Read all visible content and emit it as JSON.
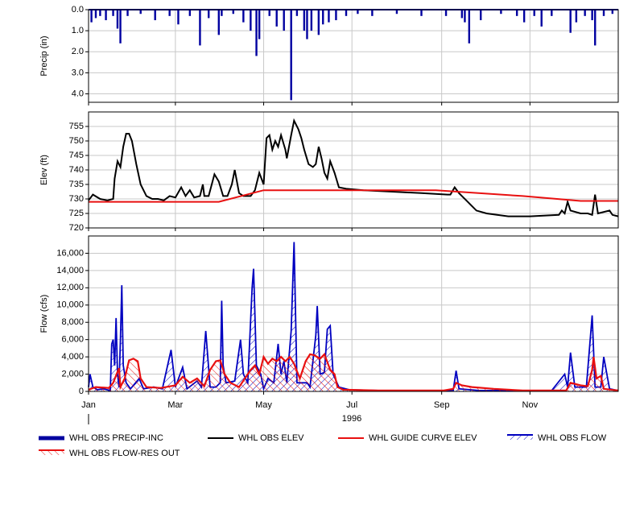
{
  "chart_data": [
    {
      "type": "bar",
      "ylabel": "Precip (in)",
      "ylim": [
        4.4,
        0
      ],
      "yticks": [
        {
          "value": 0,
          "label": "0.0"
        },
        {
          "value": 1,
          "label": "1.0"
        },
        {
          "value": 2,
          "label": "2.0"
        },
        {
          "value": 3,
          "label": "3.0"
        },
        {
          "value": 4,
          "label": "4.0"
        }
      ],
      "grid": true,
      "series": [
        {
          "name": "WHL OBS PRECIP-INC",
          "color": "#0000a0",
          "x": [
            2,
            5,
            8,
            12,
            17,
            20,
            22,
            27,
            36,
            46,
            56,
            62,
            70,
            77,
            83,
            90,
            92,
            100,
            107,
            112,
            116,
            118,
            125,
            130,
            135,
            140,
            144,
            149,
            151,
            154,
            159,
            162,
            166,
            171,
            178,
            186,
            196,
            213,
            230,
            247,
            258,
            260,
            263,
            271,
            285,
            296,
            301,
            308,
            313,
            320,
            333,
            337,
            343,
            348,
            350,
            356,
            362
          ],
          "values": [
            0.6,
            0.4,
            0.3,
            0.5,
            0.3,
            0.9,
            1.6,
            0.3,
            0.2,
            0.5,
            0.3,
            0.7,
            0.3,
            1.7,
            0.4,
            1.2,
            0.3,
            0.2,
            0.6,
            1.0,
            2.2,
            1.4,
            0.3,
            0.8,
            1.0,
            4.3,
            0.3,
            1.0,
            1.4,
            1.0,
            1.2,
            0.7,
            0.6,
            0.5,
            0.3,
            0.2,
            0.3,
            0.2,
            0.3,
            0.3,
            0.4,
            0.6,
            1.6,
            0.5,
            0.2,
            0.3,
            0.6,
            0.3,
            0.8,
            0.3,
            1.1,
            0.6,
            0.3,
            0.5,
            1.7,
            0.3,
            0.2
          ]
        }
      ]
    },
    {
      "type": "line",
      "ylabel": "Elev (ft)",
      "ylim": [
        720,
        760
      ],
      "yticks": [
        720,
        725,
        730,
        735,
        740,
        745,
        750,
        755
      ],
      "grid": true,
      "series": [
        {
          "name": "WHL OBS ELEV",
          "color": "#000000",
          "x": [
            0,
            3,
            8,
            13,
            17,
            18,
            20,
            22,
            24,
            26,
            28,
            30,
            33,
            36,
            40,
            44,
            48,
            52,
            56,
            60,
            64,
            67,
            70,
            73,
            77,
            79,
            80,
            83,
            87,
            90,
            93,
            96,
            99,
            101,
            104,
            107,
            112,
            115,
            118,
            121,
            123,
            125,
            127,
            129,
            131,
            133,
            136,
            137,
            140,
            142,
            145,
            147,
            149,
            152,
            155,
            157,
            159,
            161,
            163,
            165,
            167,
            170,
            173,
            178,
            190,
            210,
            230,
            248,
            250,
            253,
            256,
            262,
            268,
            275,
            290,
            305,
            325,
            327,
            329,
            331,
            333,
            340,
            345,
            348,
            350,
            352,
            360,
            362,
            366
          ],
          "values": [
            729.5,
            731.5,
            730,
            729.5,
            730,
            737,
            743,
            741,
            748,
            752.5,
            752.5,
            750,
            742,
            735,
            731,
            730,
            730,
            729.5,
            731,
            730.5,
            734,
            731,
            733,
            730.5,
            731,
            735,
            731,
            731,
            738.5,
            736,
            731,
            731,
            735,
            740,
            732,
            731,
            731,
            733,
            739,
            735,
            751,
            752,
            747,
            750,
            748,
            752,
            747,
            744,
            752,
            757,
            754,
            751,
            747,
            742,
            741,
            742,
            748,
            744,
            739,
            737,
            743,
            739,
            734,
            733.5,
            733,
            732.5,
            732,
            731.5,
            731.5,
            734,
            732,
            729,
            726,
            725,
            724,
            724,
            724.5,
            726,
            725,
            729,
            726,
            725,
            725,
            724.5,
            731.5,
            725,
            726,
            724.5,
            724
          ]
        },
        {
          "name": "WHL GUIDE CURVE ELEV",
          "color": "#e81010",
          "x": [
            0,
            90,
            121,
            240,
            300,
            340,
            366
          ],
          "values": [
            729,
            729,
            733,
            733,
            731,
            729.3,
            729.3
          ]
        }
      ]
    },
    {
      "type": "area",
      "ylabel": "Flow (cfs)",
      "xlabel": "1996",
      "xlim": [
        0,
        366
      ],
      "xticks": [
        {
          "value": 0,
          "label": "Jan"
        },
        {
          "value": 60,
          "label": "Mar"
        },
        {
          "value": 121,
          "label": "May"
        },
        {
          "value": 182,
          "label": "Jul"
        },
        {
          "value": 244,
          "label": "Sep"
        },
        {
          "value": 305,
          "label": "Nov"
        }
      ],
      "ylim": [
        0,
        18000
      ],
      "yticks": [
        0,
        {
          "value": 2000,
          "label": "2,000"
        },
        {
          "value": 4000,
          "label": "4,000"
        },
        {
          "value": 6000,
          "label": "6,000"
        },
        {
          "value": 8000,
          "label": "8,000"
        },
        {
          "value": 10000,
          "label": "10,000"
        },
        {
          "value": 12000,
          "label": "12,000"
        },
        {
          "value": 14000,
          "label": "14,000"
        },
        {
          "value": 16000,
          "label": "16,000"
        }
      ],
      "grid": true,
      "series": [
        {
          "name": "WHL OBS FLOW",
          "color": "#0000c0",
          "x": [
            0,
            1,
            3,
            6,
            10,
            15,
            16,
            17,
            18,
            19,
            20,
            21,
            22,
            23,
            24,
            26,
            29,
            35,
            38,
            45,
            51,
            57,
            60,
            65,
            68,
            75,
            78,
            81,
            84,
            88,
            91,
            92,
            93,
            95,
            101,
            105,
            107,
            110,
            113,
            114,
            116,
            119,
            121,
            124,
            128,
            131,
            133,
            135,
            137,
            140,
            142,
            144,
            147,
            151,
            153,
            157,
            158,
            160,
            163,
            165,
            167,
            169,
            173,
            180,
            200,
            240,
            252,
            254,
            256,
            270,
            320,
            329,
            331,
            333,
            336,
            344,
            348,
            350,
            354,
            356,
            360,
            366
          ],
          "values": [
            500,
            2000,
            500,
            200,
            300,
            100,
            5500,
            6000,
            3000,
            8500,
            2000,
            500,
            6000,
            12300,
            3000,
            1000,
            300,
            1500,
            300,
            500,
            300,
            4800,
            500,
            2800,
            300,
            1200,
            500,
            7000,
            500,
            500,
            1000,
            10500,
            3000,
            1000,
            1200,
            6000,
            2000,
            1000,
            12000,
            14200,
            3000,
            2000,
            300,
            1500,
            1000,
            5500,
            2000,
            3500,
            1000,
            7000,
            17300,
            1000,
            1000,
            1000,
            500,
            6500,
            9900,
            2000,
            2200,
            7200,
            7600,
            2000,
            500,
            200,
            100,
            100,
            100,
            2400,
            300,
            100,
            100,
            2000,
            500,
            4500,
            500,
            500,
            8800,
            500,
            500,
            4000,
            300,
            100
          ]
        },
        {
          "name": "WHL OBS FLOW-RES OUT",
          "color": "#e81010",
          "x": [
            0,
            5,
            14,
            17,
            21,
            22,
            25,
            28,
            31,
            34,
            36,
            40,
            50,
            60,
            65,
            70,
            75,
            80,
            84,
            88,
            91,
            94,
            98,
            104,
            112,
            115,
            118,
            121,
            124,
            127,
            130,
            133,
            136,
            139,
            142,
            146,
            150,
            153,
            156,
            160,
            163,
            167,
            170,
            172,
            176,
            200,
            245,
            252,
            254,
            258,
            265,
            280,
            300,
            330,
            333,
            340,
            345,
            348,
            349,
            351,
            354,
            356,
            366
          ],
          "values": [
            200,
            500,
            400,
            1000,
            2700,
            500,
            1500,
            3600,
            3800,
            3500,
            1500,
            500,
            400,
            700,
            1700,
            1000,
            1500,
            600,
            2500,
            3500,
            3600,
            2000,
            1000,
            500,
            2500,
            3000,
            2000,
            4000,
            3200,
            3800,
            3500,
            4000,
            3500,
            4000,
            3200,
            1500,
            3500,
            4300,
            4200,
            3800,
            4300,
            2500,
            2000,
            500,
            200,
            100,
            100,
            300,
            1000,
            700,
            500,
            300,
            100,
            100,
            1000,
            700,
            600,
            2500,
            4000,
            1500,
            1800,
            300,
            100
          ]
        }
      ]
    }
  ]
}
